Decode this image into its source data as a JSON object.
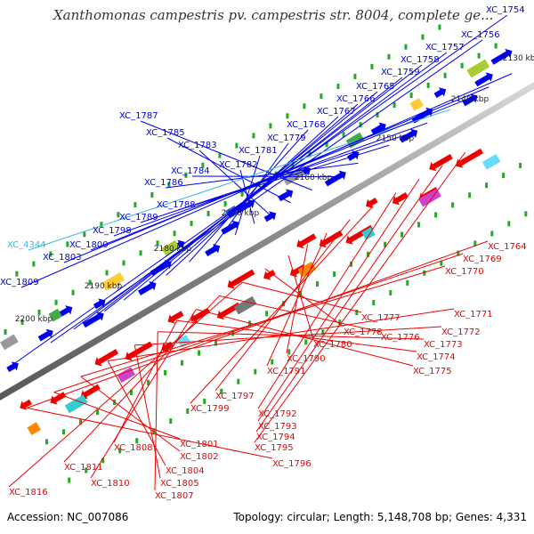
{
  "title": "Xanthomonas campestris pv. campestris str. 8004, complete ge...",
  "footer": {
    "accession": "Accession: NC_007086",
    "summary": "Topology: circular; Length: 5,148,708 bp; Genes: 4,331"
  },
  "colors": {
    "forward_strand": "#0000ee",
    "reverse_strand": "#ee0000",
    "highlight_label": "#33bbee",
    "backbone": "#999999",
    "tick": "#22aa22"
  },
  "scale_labels": [
    "2130 kbp",
    "2140 kbp",
    "2150 kbp",
    "2160 kbp",
    "2170 kbp",
    "2180 kbp",
    "2190 kbp",
    "2200 kbp"
  ],
  "forward_genes": [
    {
      "label": "XC_1754"
    },
    {
      "label": "XC_1756"
    },
    {
      "label": "XC_1757"
    },
    {
      "label": "XC_1758"
    },
    {
      "label": "XC_1759"
    },
    {
      "label": "XC_1765"
    },
    {
      "label": "XC_1766"
    },
    {
      "label": "XC_1767"
    },
    {
      "label": "XC_1768"
    },
    {
      "label": "XC_1779"
    },
    {
      "label": "XC_1781"
    },
    {
      "label": "XC_1782"
    },
    {
      "label": "XC_1783"
    },
    {
      "label": "XC_1785"
    },
    {
      "label": "XC_1787"
    },
    {
      "label": "XC_1784"
    },
    {
      "label": "XC_1786"
    },
    {
      "label": "XC_1788"
    },
    {
      "label": "XC_1789"
    },
    {
      "label": "XC_1798"
    },
    {
      "label": "XC_4344",
      "highlight": true
    },
    {
      "label": "XC_1800"
    },
    {
      "label": "XC_1803"
    },
    {
      "label": "XC_1809"
    }
  ],
  "reverse_genes": [
    {
      "label": "XC_1764"
    },
    {
      "label": "XC_1769"
    },
    {
      "label": "XC_1770"
    },
    {
      "label": "XC_1771"
    },
    {
      "label": "XC_1772"
    },
    {
      "label": "XC_1773"
    },
    {
      "label": "XC_1774"
    },
    {
      "label": "XC_1775"
    },
    {
      "label": "XC_1776"
    },
    {
      "label": "XC_1777"
    },
    {
      "label": "XC_1778"
    },
    {
      "label": "XC_1780"
    },
    {
      "label": "XC_1790"
    },
    {
      "label": "XC_1791"
    },
    {
      "label": "XC_1797"
    },
    {
      "label": "XC_1799"
    },
    {
      "label": "XC_1792"
    },
    {
      "label": "XC_1793"
    },
    {
      "label": "XC_1794"
    },
    {
      "label": "XC_1795"
    },
    {
      "label": "XC_1796"
    },
    {
      "label": "XC_1801"
    },
    {
      "label": "XC_1802"
    },
    {
      "label": "XC_1804"
    },
    {
      "label": "XC_1805"
    },
    {
      "label": "XC_1807"
    },
    {
      "label": "XC_1808"
    },
    {
      "label": "XC_1810"
    },
    {
      "label": "XC_1811"
    },
    {
      "label": "XC_1816"
    }
  ]
}
